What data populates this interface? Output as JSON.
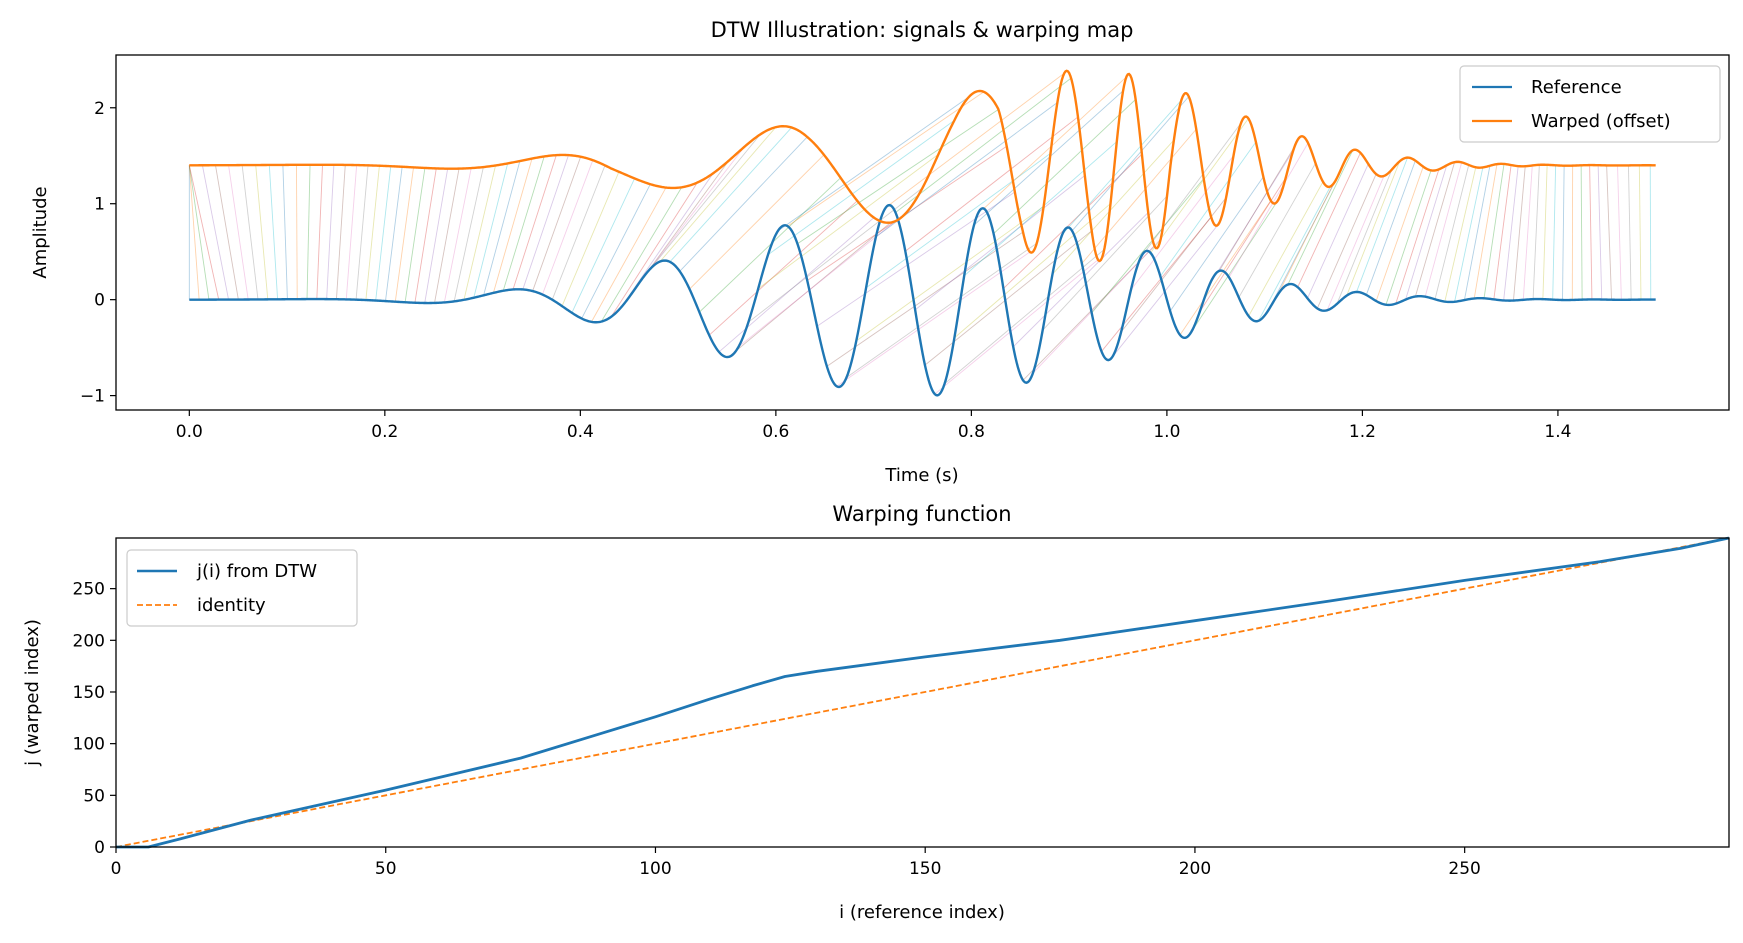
{
  "colors": {
    "reference": "#1f77b4",
    "warped": "#ff7f0e",
    "connector_cycle": [
      "#1f77b4",
      "#ff7f0e",
      "#2ca02c",
      "#d62728",
      "#9467bd",
      "#8c564b",
      "#e377c2",
      "#7f7f7f",
      "#bcbd22",
      "#17becf"
    ]
  },
  "chart_data": [
    {
      "id": "signals",
      "type": "line",
      "title": "DTW Illustration: signals & warping map",
      "xlabel": "Time (s)",
      "ylabel": "Amplitude",
      "xlim": [
        -0.075,
        1.575
      ],
      "ylim": [
        -1.15,
        2.55
      ],
      "xticks": [
        0.0,
        0.2,
        0.4,
        0.6,
        0.8,
        1.0,
        1.2,
        1.4
      ],
      "xtick_labels": [
        "0.0",
        "0.2",
        "0.4",
        "0.6",
        "0.8",
        "1.0",
        "1.2",
        "1.4"
      ],
      "yticks": [
        -1,
        0,
        1,
        2
      ],
      "ytick_labels": [
        "−1",
        "0",
        "1",
        "2"
      ],
      "legend": "top-right",
      "grid": false,
      "signal_model": {
        "samples": 300,
        "t_end": 1.5,
        "envelope_center": 0.75,
        "envelope_width": 0.28,
        "start_freq_hz": 2.0,
        "chirp_rate": 11.0,
        "warped_offset": 1.4
      },
      "connector_stride": 2,
      "series": [
        {
          "name": "Reference",
          "key": "reference"
        },
        {
          "name": "Warped (offset)",
          "key": "warped"
        }
      ]
    },
    {
      "id": "warping",
      "type": "line",
      "title": "Warping function",
      "xlabel": "i (reference index)",
      "ylabel": "j (warped index)",
      "xlim": [
        0,
        299
      ],
      "ylim": [
        0,
        299
      ],
      "xticks": [
        0,
        50,
        100,
        150,
        200,
        250
      ],
      "xtick_labels": [
        "0",
        "50",
        "100",
        "150",
        "200",
        "250"
      ],
      "yticks": [
        0,
        50,
        100,
        150,
        200,
        250
      ],
      "ytick_labels": [
        "0",
        "50",
        "100",
        "150",
        "200",
        "250"
      ],
      "legend": "top-left",
      "grid": false,
      "series": [
        {
          "name": "j(i) from DTW",
          "key": "dtw",
          "x": [
            0,
            6,
            12,
            25,
            50,
            75,
            90,
            100,
            110,
            118,
            124,
            130,
            150,
            175,
            200,
            225,
            250,
            275,
            290,
            299
          ],
          "y": [
            0,
            0,
            8,
            26,
            55,
            86,
            110,
            126,
            143,
            156,
            165,
            170,
            184,
            200,
            219,
            238,
            258,
            276,
            289,
            299
          ]
        },
        {
          "name": "identity",
          "key": "identity",
          "x": [
            0,
            299
          ],
          "y": [
            0,
            299
          ]
        }
      ]
    }
  ]
}
